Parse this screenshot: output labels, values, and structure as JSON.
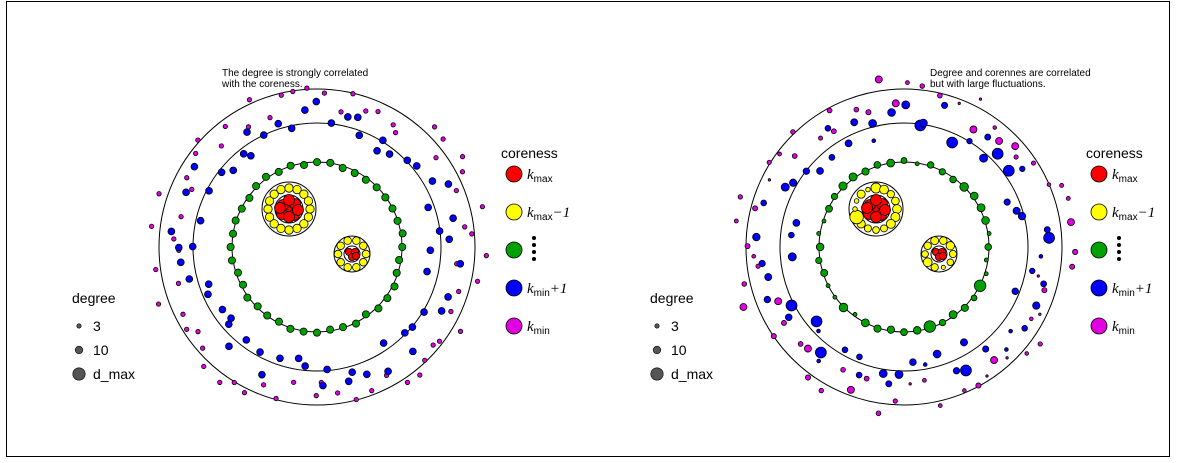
{
  "panels": [
    {
      "id": "left",
      "annotation": [
        "The degree is strongly correlated",
        "with the coreness."
      ],
      "coreness_title": "coreness",
      "degree_title": "degree",
      "degree_items": [
        "3",
        "10",
        "d_max"
      ]
    },
    {
      "id": "right",
      "annotation": [
        "Degree and corennes are correlated",
        "but with large fluctuations."
      ],
      "coreness_title": "coreness",
      "degree_title": "degree",
      "degree_items": [
        "3",
        "10",
        "d_max"
      ]
    }
  ],
  "coreness_legend": [
    {
      "color": "#ff0000",
      "base": "k",
      "sub": "max",
      "suffix": ""
    },
    {
      "color": "#ffff00",
      "base": "k",
      "sub": "max",
      "suffix": "−1"
    },
    {
      "color": "#00a000",
      "base": "",
      "sub": "",
      "suffix": ""
    },
    {
      "color": "#0000ff",
      "base": "k",
      "sub": "min",
      "suffix": "+1"
    },
    {
      "color": "#e000e0",
      "base": "k",
      "sub": "min",
      "suffix": ""
    }
  ],
  "colors": {
    "kmax": "#ff0000",
    "kmax_minus_1": "#ffff00",
    "middle": "#00a000",
    "kmin_plus_1": "#0000ff",
    "kmin": "#e000e0",
    "degree_marker": "#555555"
  }
}
